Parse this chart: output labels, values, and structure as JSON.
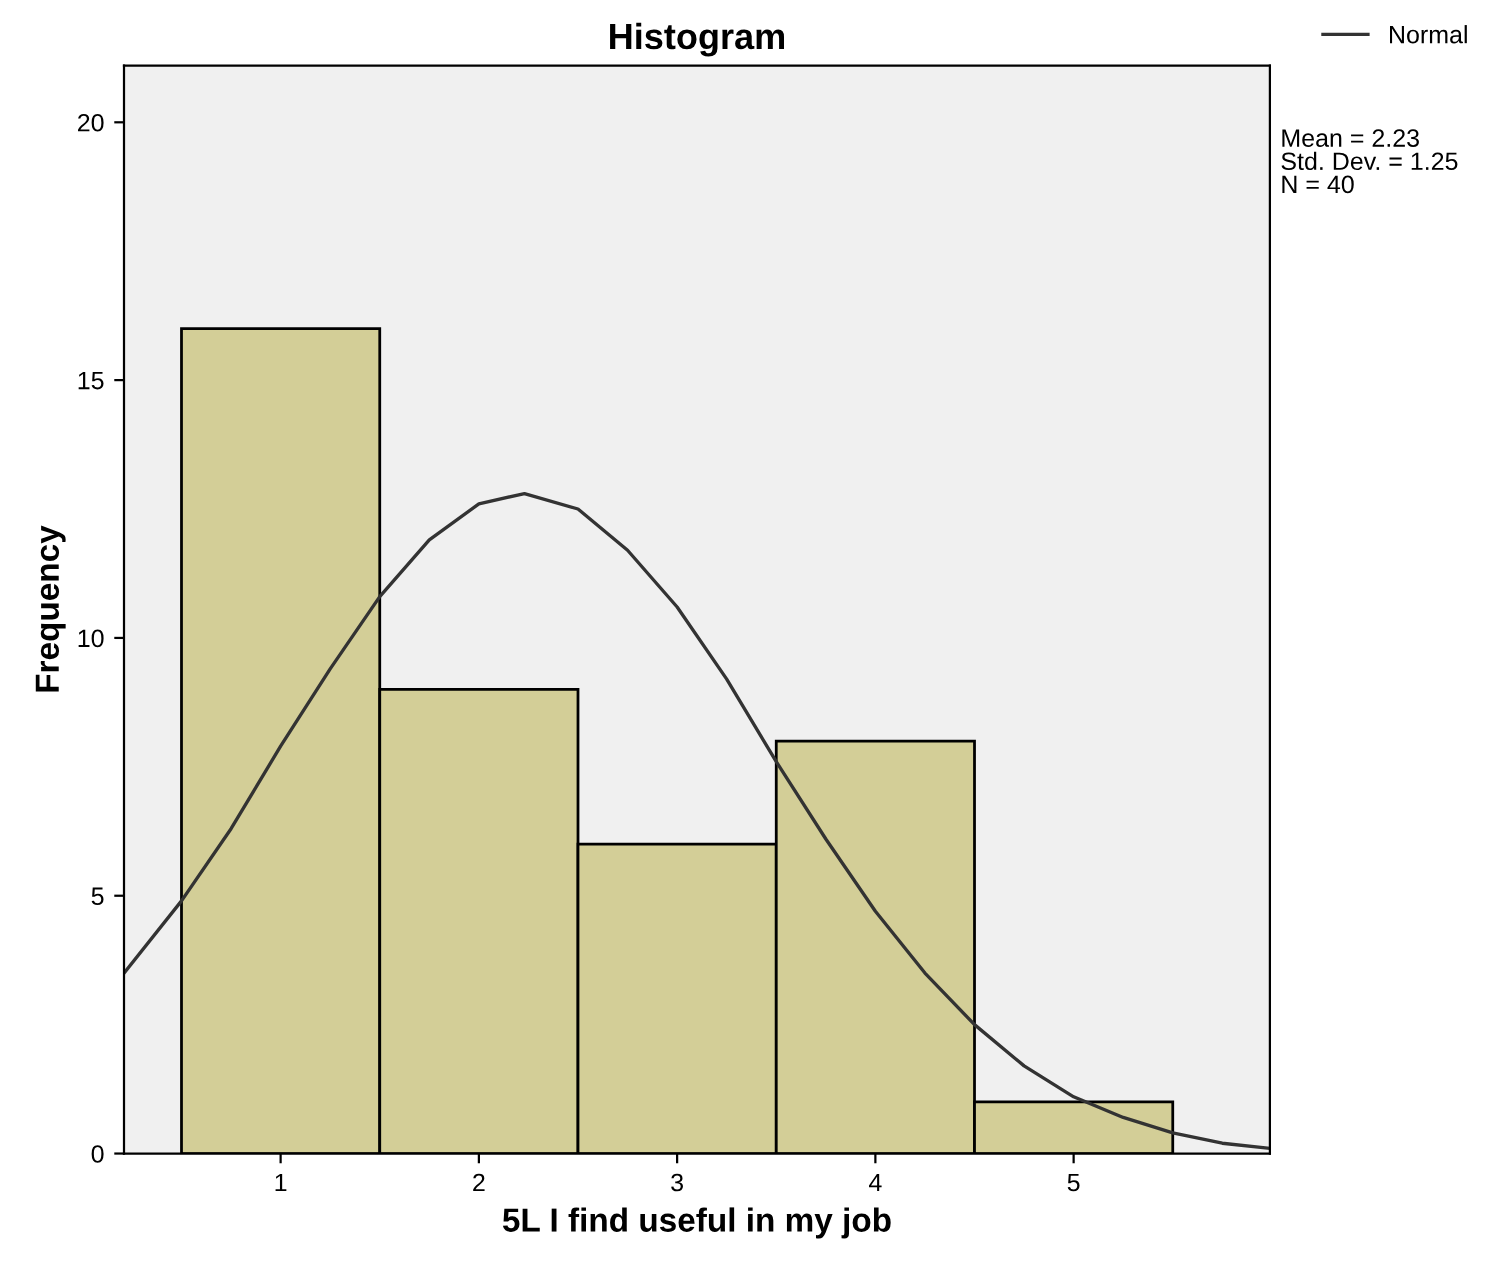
{
  "chart_data": {
    "type": "histogram",
    "title": "Histogram",
    "xlabel": "5L I find useful in my job",
    "ylabel": "Frequency",
    "xlim": [
      0.21,
      5.99
    ],
    "ylim": [
      0,
      21.1
    ],
    "xticks": [
      1,
      2,
      3,
      4,
      5
    ],
    "yticks": [
      0,
      5,
      10,
      15,
      20
    ],
    "series": [
      {
        "color": "#d3ce97",
        "bins": [
          0.5,
          1.5,
          2.5,
          3.5,
          4.5,
          5.5
        ],
        "values": [
          16,
          9,
          6,
          8,
          1
        ]
      },
      {
        "type": "line",
        "name": "Normal",
        "color": "#333333",
        "x": [
          0.21,
          0.5,
          0.75,
          1.0,
          1.25,
          1.5,
          1.75,
          2.0,
          2.23,
          2.5,
          2.75,
          3.0,
          3.25,
          3.5,
          3.75,
          4.0,
          4.25,
          4.5,
          4.75,
          5.0,
          5.25,
          5.5,
          5.75,
          5.99
        ],
        "values": [
          3.5,
          4.9,
          6.3,
          7.9,
          9.4,
          10.8,
          11.9,
          12.6,
          12.8,
          12.5,
          11.7,
          10.6,
          9.2,
          7.6,
          6.1,
          4.7,
          3.5,
          2.5,
          1.7,
          1.1,
          0.7,
          0.4,
          0.2,
          0.1
        ]
      }
    ],
    "annotations": [
      "Mean = 2.23",
      "Std. Dev. = 1.25",
      "N = 40"
    ],
    "legend": "top right",
    "grid": false
  }
}
